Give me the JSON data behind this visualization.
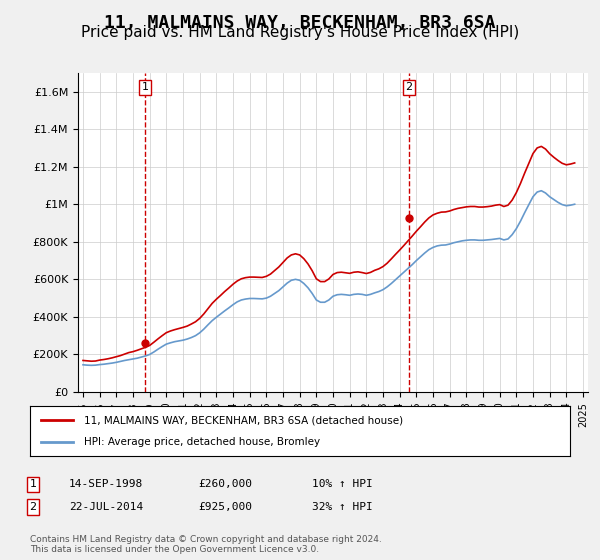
{
  "title": "11, MALMAINS WAY, BECKENHAM, BR3 6SA",
  "subtitle": "Price paid vs. HM Land Registry's House Price Index (HPI)",
  "title_fontsize": 13,
  "subtitle_fontsize": 11,
  "background_color": "#f0f0f0",
  "plot_bg_color": "#ffffff",
  "ylim": [
    0,
    1700000
  ],
  "yticks": [
    0,
    200000,
    400000,
    600000,
    800000,
    1000000,
    1200000,
    1400000,
    1600000
  ],
  "ytick_labels": [
    "£0",
    "£200K",
    "£400K",
    "£600K",
    "£800K",
    "£1M",
    "£1.2M",
    "£1.4M",
    "£1.6M"
  ],
  "x_start_year": 1995,
  "x_end_year": 2025,
  "red_line_color": "#cc0000",
  "blue_line_color": "#6699cc",
  "sale1_year": 1998.71,
  "sale1_price": 260000,
  "sale2_year": 2014.55,
  "sale2_price": 925000,
  "vline_color": "#cc0000",
  "marker_color": "#cc0000",
  "legend_label_red": "11, MALMAINS WAY, BECKENHAM, BR3 6SA (detached house)",
  "legend_label_blue": "HPI: Average price, detached house, Bromley",
  "table_row1": [
    "1",
    "14-SEP-1998",
    "£260,000",
    "10% ↑ HPI"
  ],
  "table_row2": [
    "2",
    "22-JUL-2014",
    "£925,000",
    "32% ↑ HPI"
  ],
  "footer": "Contains HM Land Registry data © Crown copyright and database right 2024.\nThis data is licensed under the Open Government Licence v3.0.",
  "hpi_data": {
    "years": [
      1995.0,
      1995.25,
      1995.5,
      1995.75,
      1996.0,
      1996.25,
      1996.5,
      1996.75,
      1997.0,
      1997.25,
      1997.5,
      1997.75,
      1998.0,
      1998.25,
      1998.5,
      1998.75,
      1999.0,
      1999.25,
      1999.5,
      1999.75,
      2000.0,
      2000.25,
      2000.5,
      2000.75,
      2001.0,
      2001.25,
      2001.5,
      2001.75,
      2002.0,
      2002.25,
      2002.5,
      2002.75,
      2003.0,
      2003.25,
      2003.5,
      2003.75,
      2004.0,
      2004.25,
      2004.5,
      2004.75,
      2005.0,
      2005.25,
      2005.5,
      2005.75,
      2006.0,
      2006.25,
      2006.5,
      2006.75,
      2007.0,
      2007.25,
      2007.5,
      2007.75,
      2008.0,
      2008.25,
      2008.5,
      2008.75,
      2009.0,
      2009.25,
      2009.5,
      2009.75,
      2010.0,
      2010.25,
      2010.5,
      2010.75,
      2011.0,
      2011.25,
      2011.5,
      2011.75,
      2012.0,
      2012.25,
      2012.5,
      2012.75,
      2013.0,
      2013.25,
      2013.5,
      2013.75,
      2014.0,
      2014.25,
      2014.5,
      2014.75,
      2015.0,
      2015.25,
      2015.5,
      2015.75,
      2016.0,
      2016.25,
      2016.5,
      2016.75,
      2017.0,
      2017.25,
      2017.5,
      2017.75,
      2018.0,
      2018.25,
      2018.5,
      2018.75,
      2019.0,
      2019.25,
      2019.5,
      2019.75,
      2020.0,
      2020.25,
      2020.5,
      2020.75,
      2021.0,
      2021.25,
      2021.5,
      2021.75,
      2022.0,
      2022.25,
      2022.5,
      2022.75,
      2023.0,
      2023.25,
      2023.5,
      2023.75,
      2024.0,
      2024.25,
      2024.5
    ],
    "values": [
      145000,
      143000,
      142000,
      143000,
      146000,
      148000,
      151000,
      154000,
      158000,
      163000,
      168000,
      172000,
      176000,
      180000,
      186000,
      192000,
      200000,
      213000,
      228000,
      242000,
      255000,
      262000,
      268000,
      272000,
      276000,
      282000,
      290000,
      300000,
      315000,
      335000,
      358000,
      380000,
      398000,
      415000,
      432000,
      448000,
      465000,
      480000,
      490000,
      495000,
      498000,
      498000,
      497000,
      496000,
      500000,
      510000,
      525000,
      540000,
      560000,
      580000,
      595000,
      600000,
      595000,
      578000,
      555000,
      525000,
      490000,
      478000,
      478000,
      490000,
      510000,
      518000,
      520000,
      518000,
      515000,
      520000,
      522000,
      520000,
      515000,
      520000,
      528000,
      535000,
      545000,
      560000,
      578000,
      598000,
      618000,
      638000,
      658000,
      678000,
      700000,
      720000,
      740000,
      758000,
      770000,
      778000,
      782000,
      783000,
      788000,
      795000,
      800000,
      805000,
      808000,
      810000,
      810000,
      808000,
      808000,
      810000,
      812000,
      815000,
      818000,
      810000,
      815000,
      838000,
      870000,
      910000,
      955000,
      998000,
      1040000,
      1065000,
      1072000,
      1060000,
      1040000,
      1025000,
      1010000,
      998000,
      992000,
      995000,
      1000000
    ]
  },
  "property_data": {
    "years": [
      1995.0,
      1995.25,
      1995.5,
      1995.75,
      1996.0,
      1996.25,
      1996.5,
      1996.75,
      1997.0,
      1997.25,
      1997.5,
      1997.75,
      1998.0,
      1998.25,
      1998.5,
      1998.75,
      1999.0,
      1999.25,
      1999.5,
      1999.75,
      2000.0,
      2000.25,
      2000.5,
      2000.75,
      2001.0,
      2001.25,
      2001.5,
      2001.75,
      2002.0,
      2002.25,
      2002.5,
      2002.75,
      2003.0,
      2003.25,
      2003.5,
      2003.75,
      2004.0,
      2004.25,
      2004.5,
      2004.75,
      2005.0,
      2005.25,
      2005.5,
      2005.75,
      2006.0,
      2006.25,
      2006.5,
      2006.75,
      2007.0,
      2007.25,
      2007.5,
      2007.75,
      2008.0,
      2008.25,
      2008.5,
      2008.75,
      2009.0,
      2009.25,
      2009.5,
      2009.75,
      2010.0,
      2010.25,
      2010.5,
      2010.75,
      2011.0,
      2011.25,
      2011.5,
      2011.75,
      2012.0,
      2012.25,
      2012.5,
      2012.75,
      2013.0,
      2013.25,
      2013.5,
      2013.75,
      2014.0,
      2014.25,
      2014.5,
      2014.75,
      2015.0,
      2015.25,
      2015.5,
      2015.75,
      2016.0,
      2016.25,
      2016.5,
      2016.75,
      2017.0,
      2017.25,
      2017.5,
      2017.75,
      2018.0,
      2018.25,
      2018.5,
      2018.75,
      2019.0,
      2019.25,
      2019.5,
      2019.75,
      2020.0,
      2020.25,
      2020.5,
      2020.75,
      2021.0,
      2021.25,
      2021.5,
      2021.75,
      2022.0,
      2022.25,
      2022.5,
      2022.75,
      2023.0,
      2023.25,
      2023.5,
      2023.75,
      2024.0,
      2024.25,
      2024.5
    ],
    "values": [
      168000,
      166000,
      164000,
      165000,
      170000,
      173000,
      177000,
      182000,
      188000,
      194000,
      202000,
      210000,
      215000,
      222000,
      230000,
      238000,
      248000,
      265000,
      283000,
      300000,
      316000,
      325000,
      332000,
      338000,
      344000,
      351000,
      362000,
      374000,
      392000,
      416000,
      444000,
      472000,
      494000,
      514000,
      535000,
      554000,
      574000,
      591000,
      603000,
      609000,
      612000,
      612000,
      611000,
      610000,
      616000,
      628000,
      647000,
      666000,
      690000,
      714000,
      730000,
      736000,
      730000,
      710000,
      682000,
      646000,
      603000,
      588000,
      588000,
      602000,
      626000,
      636000,
      638000,
      635000,
      632000,
      638000,
      640000,
      636000,
      631000,
      637000,
      648000,
      656000,
      668000,
      686000,
      709000,
      733000,
      756000,
      780000,
      805000,
      830000,
      856000,
      880000,
      905000,
      927000,
      943000,
      952000,
      958000,
      959000,
      964000,
      972000,
      978000,
      982000,
      986000,
      988000,
      988000,
      985000,
      985000,
      987000,
      990000,
      995000,
      998000,
      988000,
      995000,
      1022000,
      1062000,
      1111000,
      1166000,
      1218000,
      1270000,
      1300000,
      1308000,
      1294000,
      1269000,
      1250000,
      1233000,
      1218000,
      1210000,
      1214000,
      1220000
    ]
  }
}
